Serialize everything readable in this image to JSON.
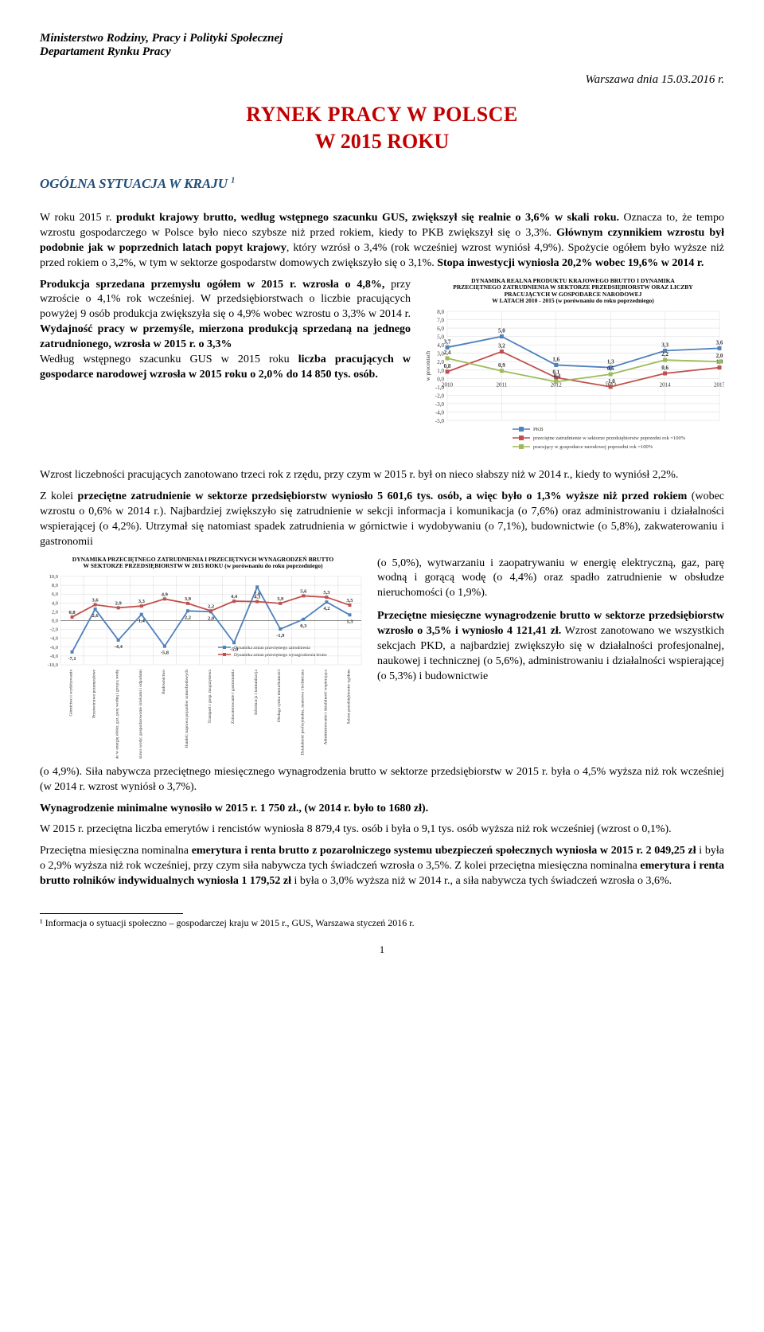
{
  "header": {
    "line1": "Ministerstwo Rodziny, Pracy i Polityki Społecznej",
    "line2": "Departament Rynku Pracy",
    "date": "Warszawa dnia 15.03.2016 r."
  },
  "title": {
    "line1": "RYNEK PRACY W POLSCE",
    "line2": "W 2015 ROKU"
  },
  "section_heading": "OGÓLNA SYTUACJA W KRAJU ",
  "section_heading_sup": "1",
  "para1_a": "W roku 2015 r. ",
  "para1_b": "produkt krajowy brutto, według wstępnego szacunku GUS, zwiększył się realnie o 3,6% w skali roku.",
  "para1_c": " Oznacza to, że tempo wzrostu gospodarczego w Polsce było nieco szybsze niż przed rokiem, kiedy to PKB zwiększył się o 3,3%. ",
  "para1_d": "Głównym czynnikiem wzrostu był podobnie jak w poprzednich latach popyt krajowy",
  "para1_e": ", który wzrósł o 3,4% (rok wcześniej wzrost wyniósł 4,9%). Spożycie ogółem było wyższe niż przed rokiem o 3,2%, w tym w sektorze gospodarstw domowych zwiększyło się o 3,1%. ",
  "para1_f": "Stopa inwestycji wyniosła 20,2% wobec 19,6% w 2014 r.",
  "leftcol_a": "Produkcja sprzedana przemysłu ogółem w 2015 r. wzrosła o 4,8%,",
  "leftcol_b": " przy wzroście o 4,1% rok wcześniej. W przedsiębiorstwach o liczbie pracujących powyżej 9 osób produkcja zwiększyła się o 4,9% wobec wzrostu o 3,3% w 2014 r. ",
  "leftcol_c": "Wydajność pracy w przemyśle, mierzona produkcją sprzedaną na jednego zatrudnionego, wzrosła w 2015 r. o 3,3%",
  "leftcol_d": "Według wstępnego szacunku GUS w 2015 roku ",
  "leftcol_e": "liczba pracujących w gospodarce narodowej wzrosła w 2015 roku o 2,0% do 14 850 tys. osób.",
  "after1_a": " Wzrost liczebności pracujących zanotowano trzeci rok z rzędu, przy czym w 2015 r. był on nieco słabszy niż w 2014 r., kiedy to wyniósł 2,2%.",
  "para3_a": "Z kolei ",
  "para3_b": "przeciętne zatrudnienie w  sektorze przedsiębiorstw wyniosło 5 601,6 tys. osób, a więc było o 1,3% wyższe niż przed rokiem",
  "para3_c": " (wobec wzrostu o 0,6% w 2014 r.). Najbardziej zwiększyło się zatrudnienie w sekcji informacja i komunikacja (o 7,6%) oraz administrowaniu i działalności wspierającej (o 4,2%). Utrzymał się natomiast spadek zatrudnienia w górnictwie i wydobywaniu (o 7,1%), budownictwie (o 5,8%), zakwaterowaniu i gastronomii",
  "rightcol2_a": "(o 5,0%), wytwarzaniu i zaopatrywaniu w energię elektryczną, gaz, parę wodną i gorącą wodę (o 4,4%) oraz spadło zatrudnienie w obsłudze nieruchomości (o 1,9%).",
  "rightcol2_b": "Przeciętne miesięczne wynagrodzenie brutto w sektorze przedsiębiorstw wzrosło o 3,5% i wyniosło 4 121,41 zł.",
  "rightcol2_c": " Wzrost zanotowano we wszystkich sekcjach PKD, a najbardziej zwiększyło się w działalności profesjonalnej, naukowej i technicznej (o 5,6%), administrowaniu i działalności wspierającej (o 5,3%) i budownictwie",
  "para4_a": "(o 4,9%). Siła nabywcza przeciętnego miesięcznego wynagrodzenia brutto w sektorze przedsiębiorstw w 2015 r. była o 4,5% wyższa niż rok wcześniej (w 2014 r. wzrost wyniósł o 3,7%).",
  "para5": "Wynagrodzenie minimalne wynosiło w 2015 r. 1 750 zł., (w 2014 r. było to 1680 zł).",
  "para6": "W 2015 r. przeciętna liczba emerytów i rencistów wyniosła 8 879,4 tys. osób i była o 9,1 tys. osób wyższa niż rok wcześniej (wzrost o 0,1%).",
  "para7_a": "Przeciętna miesięczna nominalna ",
  "para7_b": "emerytura i renta brutto z pozarolniczego systemu ubezpieczeń społecznych wyniosła w 2015 r. 2 049,25 zł",
  "para7_c": " i była o 2,9% wyższa niż rok wcześniej, przy czym siła nabywcza tych świadczeń wzrosła o 3,5%. Z kolei przeciętna miesięczna nominalna ",
  "para7_d": "emerytura i renta brutto rolników indywidualnych wyniosła 1 179,52 zł",
  "para7_e": " i była o 3,0% wyższa niż w 2014 r., a siła nabywcza tych świadczeń wzrosła o 3,6%.",
  "footnote": "¹ Informacja o sytuacji społeczno – gospodarczej kraju w 2015 r., GUS, Warszawa styczeń 2016 r.",
  "pagenum": "1",
  "chart1": {
    "title1": "DYNAMIKA REALNA PRODUKTU KRAJOWEGO BRUTTO I DYNAMIKA",
    "title2": "PRZECIĘTNEGO  ZATRUDNIENIA W SEKTORZE PRZEDSIĘBIORSTW ORAZ LICZBY",
    "title3": "PRACUJĄCYCH W GOSPODARCE NARODOWEJ",
    "title4": "W LATACH  2010 - 2015 (w porównaniu do roku poprzedniego)",
    "ylabel": "w procentach",
    "years": [
      "2010",
      "2011",
      "2012",
      "2013",
      "2014",
      "2015"
    ],
    "yticks": [
      -5,
      -4,
      -3,
      -2,
      -1,
      0,
      1,
      2,
      3,
      4,
      5,
      6,
      7,
      8
    ],
    "series": [
      {
        "name": "PKB",
        "color": "#4f81bd",
        "vals": [
          3.7,
          5.0,
          1.6,
          1.3,
          3.3,
          3.6
        ],
        "labels": [
          "3,7",
          "5,0",
          "1,6",
          "1,3",
          "3,3",
          "3,6"
        ]
      },
      {
        "name": "przeciętne zatrudnienie w sektorze przedsiębiorstw poprzedni rok =100%",
        "color": "#c0504d",
        "vals": [
          0.8,
          3.2,
          0.1,
          -1.0,
          0.6,
          1.3
        ],
        "labels": [
          "0,8",
          "3,2",
          "0,1",
          "-1,0",
          "0,6",
          "1,3"
        ]
      },
      {
        "name": "pracujący w gospodarce narodowej poprzedni rok =100%",
        "color": "#9bbb59",
        "vals": [
          2.4,
          0.9,
          -0.4,
          0.5,
          2.2,
          2.0
        ],
        "labels": [
          "2,4",
          "0,9",
          "-0,4",
          "0,5",
          "2,2",
          "2,0"
        ]
      }
    ],
    "legend": [
      "PKB",
      "przeciętne zatrudnienie w sektorze przedsiębiorstw poprzedni rok =100%",
      "pracujący w gospodarce narodowej poprzedni rok =100%"
    ]
  },
  "chart2": {
    "title1": "DYNAMIKA PRZECIĘTNEGO  ZATRUDNIENIA I  PRZECIĘTNYCH WYNAGRODZEŃ BRUTTO",
    "title2": "W SEKTORZE PRZEDSIĘBIORSTW  W 2015 ROKU (w porównaniu do roku poprzedniego)",
    "yticks": [
      -10,
      -8,
      -6,
      -4,
      -2,
      0,
      2,
      4,
      6,
      8,
      10
    ],
    "categories": [
      "Górnictwo i wydobywanie",
      "Przetwórstwo przemysłowe",
      "Wytwarzanie i zaopatrywanie w energię elektr, gaz, parę wodną i gorącą wodę",
      "Dostawa wody; gospodarowanie ściekami i odpadami",
      "Budownictwo",
      "Handel; naprawa pojazdów samochodowych",
      "Transport i gosp. magazynowa",
      "Zakwaterowanie i gastronomia",
      "Informacja i komunikacja",
      "Obsługa rynku nieruchomości",
      "Działalność profesjonalna, naukowa i techniczna",
      "Administrowanie i działalność wspierająca",
      "Sektor przedsiębiorstw ogółem"
    ],
    "series": [
      {
        "name": "Dynamika zmian przeciętnego zatrudnienia",
        "color": "#4f81bd",
        "vals": [
          -7.1,
          2.6,
          -4.4,
          1.4,
          -5.8,
          2.2,
          2.0,
          -5.0,
          7.6,
          -1.9,
          0.3,
          4.2,
          1.3
        ],
        "labels": [
          "-7,1",
          "2,6",
          "-4,4",
          "1,4",
          "-5,8",
          "2,2",
          "2,0",
          "-5,0",
          "7,6",
          "-1,9",
          "0,3",
          "4,2",
          "1,3"
        ]
      },
      {
        "name": "Dynamika zmian przeciętnego wynagrodzenia brutto",
        "color": "#c0504d",
        "vals": [
          0.8,
          3.6,
          2.9,
          3.3,
          4.9,
          3.9,
          2.2,
          4.4,
          4.3,
          3.9,
          5.6,
          5.3,
          3.5
        ],
        "labels": [
          "0,8",
          "3,6",
          "2,9",
          "3,3",
          "4,9",
          "3,9",
          "2,2",
          "4,4",
          "4,3",
          "3,9",
          "5,6",
          "5,3",
          "3,5"
        ]
      }
    ]
  }
}
